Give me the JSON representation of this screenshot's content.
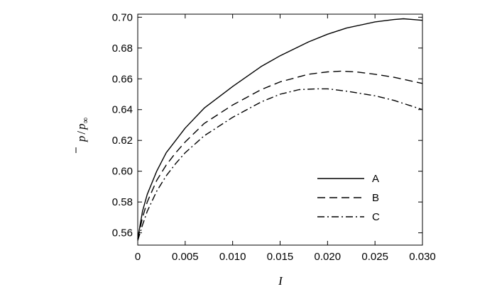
{
  "chart_data": {
    "type": "line",
    "xlabel": "I",
    "ylabel_main": "p",
    "ylabel_sep": "/",
    "ylabel_sub_base": "p",
    "ylabel_sub": "∞",
    "xlim": [
      0,
      0.03
    ],
    "ylim": [
      0.552,
      0.702
    ],
    "x_ticks": [
      0,
      0.005,
      0.01,
      0.015,
      0.02,
      0.025,
      0.03
    ],
    "x_tick_labels": [
      "0",
      "0.005",
      "0.010",
      "0.015",
      "0.020",
      "0.025",
      "0.030"
    ],
    "y_ticks": [
      0.56,
      0.58,
      0.6,
      0.62,
      0.64,
      0.66,
      0.68,
      0.7
    ],
    "y_tick_labels": [
      "0.56",
      "0.58",
      "0.60",
      "0.62",
      "0.64",
      "0.66",
      "0.68",
      "0.70"
    ],
    "grid": false,
    "legend_position": "lower-right",
    "series": [
      {
        "name": "A",
        "dash": "solid",
        "x": [
          0,
          0.0005,
          0.001,
          0.002,
          0.003,
          0.004,
          0.005,
          0.007,
          0.01,
          0.013,
          0.015,
          0.018,
          0.02,
          0.022,
          0.025,
          0.027,
          0.028,
          0.029,
          0.03
        ],
        "y": [
          0.556,
          0.574,
          0.585,
          0.6,
          0.612,
          0.62,
          0.628,
          0.641,
          0.655,
          0.668,
          0.675,
          0.684,
          0.689,
          0.693,
          0.697,
          0.6985,
          0.699,
          0.6985,
          0.698
        ]
      },
      {
        "name": "B",
        "dash": "dashed",
        "x": [
          0,
          0.0005,
          0.001,
          0.002,
          0.003,
          0.004,
          0.005,
          0.007,
          0.01,
          0.013,
          0.015,
          0.018,
          0.02,
          0.0215,
          0.023,
          0.025,
          0.027,
          0.03
        ],
        "y": [
          0.556,
          0.57,
          0.58,
          0.594,
          0.604,
          0.612,
          0.619,
          0.631,
          0.643,
          0.653,
          0.658,
          0.663,
          0.6645,
          0.665,
          0.6645,
          0.663,
          0.661,
          0.657
        ]
      },
      {
        "name": "C",
        "dash": "dashdot",
        "x": [
          0,
          0.0005,
          0.001,
          0.002,
          0.003,
          0.004,
          0.005,
          0.007,
          0.01,
          0.013,
          0.015,
          0.017,
          0.019,
          0.02,
          0.022,
          0.025,
          0.027,
          0.03
        ],
        "y": [
          0.555,
          0.565,
          0.574,
          0.587,
          0.597,
          0.605,
          0.612,
          0.623,
          0.635,
          0.645,
          0.65,
          0.653,
          0.6535,
          0.6535,
          0.652,
          0.649,
          0.646,
          0.64
        ]
      }
    ]
  }
}
